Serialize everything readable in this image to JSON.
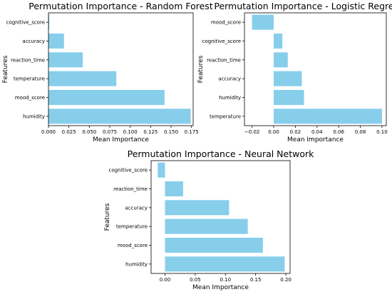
{
  "chart_data": [
    {
      "type": "bar",
      "orientation": "horizontal",
      "title": "Permutation Importance - Random Forest",
      "xlabel": "Mean Importance",
      "ylabel": "Features",
      "categories": [
        "cognitive_score",
        "accuracy",
        "reaction_time",
        "temperature",
        "mood_score",
        "humidity"
      ],
      "values": [
        0.001,
        0.019,
        0.042,
        0.083,
        0.142,
        0.174
      ],
      "xlim": [
        0.0,
        0.177
      ],
      "xticks": [
        "0.000",
        "0.025",
        "0.050",
        "0.075",
        "0.100",
        "0.125",
        "0.150",
        "0.175"
      ],
      "xtick_values": [
        0.0,
        0.025,
        0.05,
        0.075,
        0.1,
        0.125,
        0.15,
        0.175
      ],
      "grid": false,
      "bar_color": "#87ceeb"
    },
    {
      "type": "bar",
      "orientation": "horizontal",
      "title": "Permutation Importance - Logistic Regression",
      "xlabel": "Mean Importance",
      "ylabel": "Features",
      "categories": [
        "mood_score",
        "cognitive_score",
        "reaction_time",
        "accuracy",
        "humidity",
        "temperature"
      ],
      "values": [
        -0.02,
        0.008,
        0.013,
        0.026,
        0.028,
        0.1
      ],
      "xlim": [
        -0.027,
        0.104
      ],
      "xticks": [
        "−0.02",
        "0.00",
        "0.02",
        "0.04",
        "0.06",
        "0.08",
        "0.10"
      ],
      "xtick_values": [
        -0.02,
        0.0,
        0.02,
        0.04,
        0.06,
        0.08,
        0.1
      ],
      "grid": false,
      "bar_color": "#87ceeb"
    },
    {
      "type": "bar",
      "orientation": "horizontal",
      "title": "Permutation Importance - Neural Network",
      "xlabel": "Mean Importance",
      "ylabel": "Features",
      "categories": [
        "cognitive_score",
        "reaction_time",
        "accuracy",
        "temperature",
        "mood_score",
        "humidity"
      ],
      "values": [
        -0.012,
        0.03,
        0.106,
        0.137,
        0.162,
        0.198
      ],
      "xlim": [
        -0.023,
        0.207
      ],
      "xticks": [
        "0.00",
        "0.05",
        "0.10",
        "0.15",
        "0.20"
      ],
      "xtick_values": [
        0.0,
        0.05,
        0.1,
        0.15,
        0.2
      ],
      "grid": false,
      "bar_color": "#87ceeb"
    }
  ]
}
